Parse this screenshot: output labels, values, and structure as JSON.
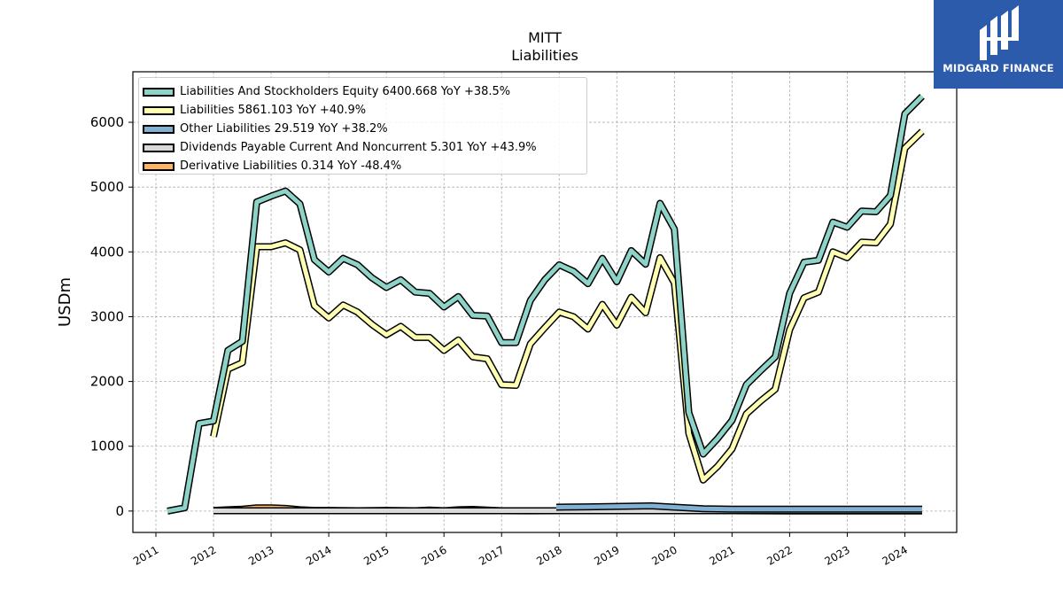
{
  "chart_data": {
    "type": "line",
    "title": "MITT",
    "subtitle": "Liabilities",
    "ylabel": "USDm",
    "xlabel": "",
    "xlim": [
      2010.6,
      2024.9
    ],
    "ylim": [
      -330,
      6780
    ],
    "yticks": [
      0,
      1000,
      2000,
      3000,
      4000,
      5000,
      6000
    ],
    "xticks": [
      "2011",
      "2012",
      "2013",
      "2014",
      "2015",
      "2016",
      "2017",
      "2018",
      "2019",
      "2020",
      "2021",
      "2022",
      "2023",
      "2024"
    ],
    "grid": true,
    "legend_position": "top-left",
    "series": [
      {
        "name": "Liabilities And Stockholders Equity",
        "legend": "Liabilities And Stockholders Equity  6400.668 YoY +38.5%",
        "color": "#8dd3c7",
        "points": [
          [
            2011.2,
            0
          ],
          [
            2011.5,
            50
          ],
          [
            2011.75,
            1350
          ],
          [
            2012.0,
            1390
          ],
          [
            2012.25,
            2480
          ],
          [
            2012.5,
            2620
          ],
          [
            2012.75,
            4770
          ],
          [
            2013.0,
            4860
          ],
          [
            2013.25,
            4940
          ],
          [
            2013.5,
            4740
          ],
          [
            2013.75,
            3880
          ],
          [
            2014.0,
            3690
          ],
          [
            2014.25,
            3900
          ],
          [
            2014.5,
            3800
          ],
          [
            2014.75,
            3600
          ],
          [
            2015.0,
            3450
          ],
          [
            2015.25,
            3570
          ],
          [
            2015.5,
            3380
          ],
          [
            2015.75,
            3360
          ],
          [
            2016.0,
            3150
          ],
          [
            2016.25,
            3310
          ],
          [
            2016.5,
            3020
          ],
          [
            2016.75,
            3010
          ],
          [
            2017.0,
            2600
          ],
          [
            2017.25,
            2600
          ],
          [
            2017.5,
            3250
          ],
          [
            2017.75,
            3570
          ],
          [
            2018.0,
            3800
          ],
          [
            2018.25,
            3700
          ],
          [
            2018.5,
            3510
          ],
          [
            2018.75,
            3900
          ],
          [
            2019.0,
            3540
          ],
          [
            2019.25,
            4020
          ],
          [
            2019.5,
            3810
          ],
          [
            2019.75,
            4750
          ],
          [
            2020.0,
            4350
          ],
          [
            2020.25,
            1520
          ],
          [
            2020.5,
            880
          ],
          [
            2020.75,
            1120
          ],
          [
            2021.0,
            1400
          ],
          [
            2021.25,
            1950
          ],
          [
            2021.5,
            2170
          ],
          [
            2021.75,
            2380
          ],
          [
            2022.0,
            3360
          ],
          [
            2022.25,
            3840
          ],
          [
            2022.5,
            3870
          ],
          [
            2022.75,
            4460
          ],
          [
            2023.0,
            4380
          ],
          [
            2023.25,
            4630
          ],
          [
            2023.5,
            4620
          ],
          [
            2023.75,
            4870
          ],
          [
            2024.0,
            6130
          ],
          [
            2024.3,
            6400
          ]
        ]
      },
      {
        "name": "Liabilities",
        "legend": "Liabilities  5861.103 YoY +40.9%",
        "color": "#ffffb3",
        "points": [
          [
            2012.0,
            1150
          ],
          [
            2012.25,
            2190
          ],
          [
            2012.5,
            2290
          ],
          [
            2012.75,
            4080
          ],
          [
            2013.0,
            4080
          ],
          [
            2013.25,
            4140
          ],
          [
            2013.5,
            4030
          ],
          [
            2013.75,
            3170
          ],
          [
            2014.0,
            2980
          ],
          [
            2014.25,
            3180
          ],
          [
            2014.5,
            3070
          ],
          [
            2014.75,
            2880
          ],
          [
            2015.0,
            2720
          ],
          [
            2015.25,
            2850
          ],
          [
            2015.5,
            2680
          ],
          [
            2015.75,
            2680
          ],
          [
            2016.0,
            2480
          ],
          [
            2016.25,
            2640
          ],
          [
            2016.5,
            2380
          ],
          [
            2016.75,
            2350
          ],
          [
            2017.0,
            1950
          ],
          [
            2017.25,
            1940
          ],
          [
            2017.5,
            2580
          ],
          [
            2017.75,
            2830
          ],
          [
            2018.0,
            3070
          ],
          [
            2018.25,
            3000
          ],
          [
            2018.5,
            2810
          ],
          [
            2018.75,
            3190
          ],
          [
            2019.0,
            2870
          ],
          [
            2019.25,
            3300
          ],
          [
            2019.5,
            3060
          ],
          [
            2019.75,
            3910
          ],
          [
            2020.0,
            3520
          ],
          [
            2020.25,
            1200
          ],
          [
            2020.5,
            480
          ],
          [
            2020.75,
            690
          ],
          [
            2021.0,
            960
          ],
          [
            2021.25,
            1500
          ],
          [
            2021.5,
            1700
          ],
          [
            2021.75,
            1880
          ],
          [
            2022.0,
            2800
          ],
          [
            2022.25,
            3290
          ],
          [
            2022.5,
            3380
          ],
          [
            2022.75,
            4000
          ],
          [
            2023.0,
            3910
          ],
          [
            2023.25,
            4150
          ],
          [
            2023.5,
            4140
          ],
          [
            2023.75,
            4430
          ],
          [
            2024.0,
            5600
          ],
          [
            2024.3,
            5860
          ]
        ]
      },
      {
        "name": "Other Liabilities",
        "legend": "Other Liabilities  29.519 YoY +38.2%",
        "color": "#80b1d3",
        "points": [
          [
            2017.95,
            60
          ],
          [
            2018.5,
            65
          ],
          [
            2019.0,
            72
          ],
          [
            2019.6,
            80
          ],
          [
            2020.0,
            60
          ],
          [
            2020.5,
            35
          ],
          [
            2021.0,
            30
          ],
          [
            2021.5,
            28
          ],
          [
            2022.0,
            28
          ],
          [
            2022.5,
            30
          ],
          [
            2023.0,
            30
          ],
          [
            2023.5,
            29
          ],
          [
            2024.0,
            30
          ],
          [
            2024.3,
            30
          ]
        ]
      },
      {
        "name": "Dividends Payable Current And Noncurrent",
        "legend": "Dividends Payable Current And Noncurrent  5.301 YoY +43.9%",
        "color": "#d9d9d9",
        "points": [
          [
            2012.0,
            5
          ],
          [
            2024.3,
            5
          ]
        ]
      },
      {
        "name": "Derivative Liabilities",
        "legend": "Derivative Liabilities  0.314 YoY -48.4%",
        "color": "#fdb462",
        "points": [
          [
            2012.0,
            10
          ],
          [
            2012.25,
            20
          ],
          [
            2012.5,
            30
          ],
          [
            2012.75,
            50
          ],
          [
            2013.0,
            50
          ],
          [
            2013.25,
            40
          ],
          [
            2013.5,
            20
          ],
          [
            2013.75,
            10
          ],
          [
            2014.0,
            10
          ],
          [
            2014.5,
            5
          ],
          [
            2015.0,
            10
          ],
          [
            2015.5,
            5
          ],
          [
            2015.75,
            15
          ],
          [
            2016.0,
            5
          ],
          [
            2016.25,
            20
          ],
          [
            2016.5,
            25
          ],
          [
            2017.0,
            5
          ],
          [
            2017.5,
            3
          ],
          [
            2018.0,
            5
          ],
          [
            2018.5,
            10
          ],
          [
            2019.0,
            10
          ],
          [
            2019.5,
            20
          ],
          [
            2019.75,
            15
          ],
          [
            2020.0,
            10
          ],
          [
            2020.25,
            25
          ],
          [
            2020.5,
            10
          ],
          [
            2021.0,
            5
          ],
          [
            2021.5,
            3
          ],
          [
            2022.0,
            2
          ],
          [
            2022.5,
            2
          ],
          [
            2023.0,
            2
          ],
          [
            2023.5,
            1
          ],
          [
            2024.0,
            1
          ],
          [
            2024.3,
            0.3
          ]
        ]
      }
    ]
  },
  "brand": {
    "name": "MIDGARD FINANCE",
    "background": "#2d5bab"
  }
}
